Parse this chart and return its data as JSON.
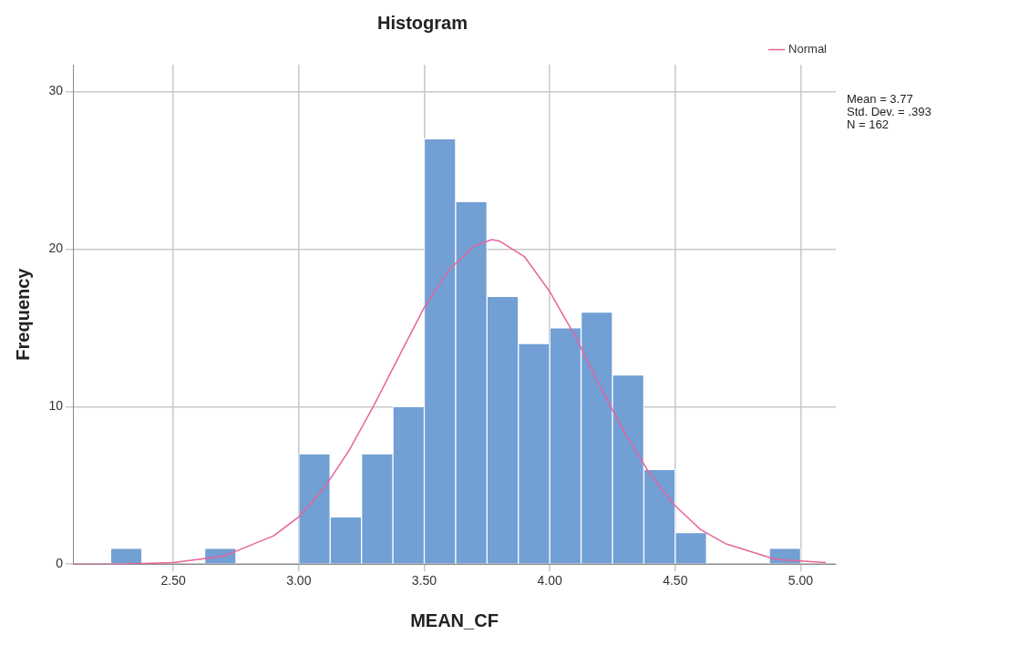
{
  "chart_data": {
    "type": "histogram",
    "title": "Histogram",
    "xlabel": "MEAN_CF",
    "ylabel": "Frequency",
    "bins": [
      2.25,
      2.375,
      2.5,
      2.625,
      2.75,
      2.875,
      3.0,
      3.125,
      3.25,
      3.375,
      3.5,
      3.625,
      3.75,
      3.875,
      4.0,
      4.125,
      4.25,
      4.375,
      4.5,
      4.625,
      4.75,
      4.875,
      5.0
    ],
    "values": [
      1,
      0,
      0,
      1,
      0,
      0,
      7,
      3,
      7,
      10,
      27,
      23,
      17,
      14,
      15,
      16,
      12,
      6,
      2,
      0,
      0,
      1
    ],
    "color": "#729fd4",
    "series": [
      {
        "type": "line",
        "name": "Normal",
        "color": "#e8649a",
        "x": [
          2.1,
          2.3,
          2.5,
          2.7,
          2.9,
          3.0,
          3.1,
          3.2,
          3.3,
          3.4,
          3.5,
          3.6,
          3.7,
          3.77,
          3.8,
          3.9,
          4.0,
          4.1,
          4.2,
          4.3,
          4.4,
          4.5,
          4.6,
          4.7,
          4.9,
          5.1
        ],
        "values": [
          0.0,
          0.0,
          0.1,
          0.5,
          1.8,
          3.0,
          4.8,
          7.2,
          10.1,
          13.2,
          16.3,
          18.7,
          20.2,
          20.6,
          20.5,
          19.5,
          17.3,
          14.5,
          11.3,
          8.3,
          5.7,
          3.7,
          2.2,
          1.3,
          0.3,
          0.1
        ]
      }
    ],
    "xlim": [
      2.1,
      5.14
    ],
    "ylim": [
      0,
      31.7
    ],
    "xticks": [
      {
        "value": 2.5,
        "label": "2.50"
      },
      {
        "value": 3.0,
        "label": "3.00"
      },
      {
        "value": 3.5,
        "label": "3.50"
      },
      {
        "value": 4.0,
        "label": "4.00"
      },
      {
        "value": 4.5,
        "label": "4.50"
      },
      {
        "value": 5.0,
        "label": "5.00"
      }
    ],
    "yticks": [
      0,
      10,
      20,
      30
    ],
    "grid": true,
    "legend": "top right",
    "annotations": [
      "Mean = 3.77",
      "Std. Dev. = .393",
      "N = 162"
    ]
  }
}
